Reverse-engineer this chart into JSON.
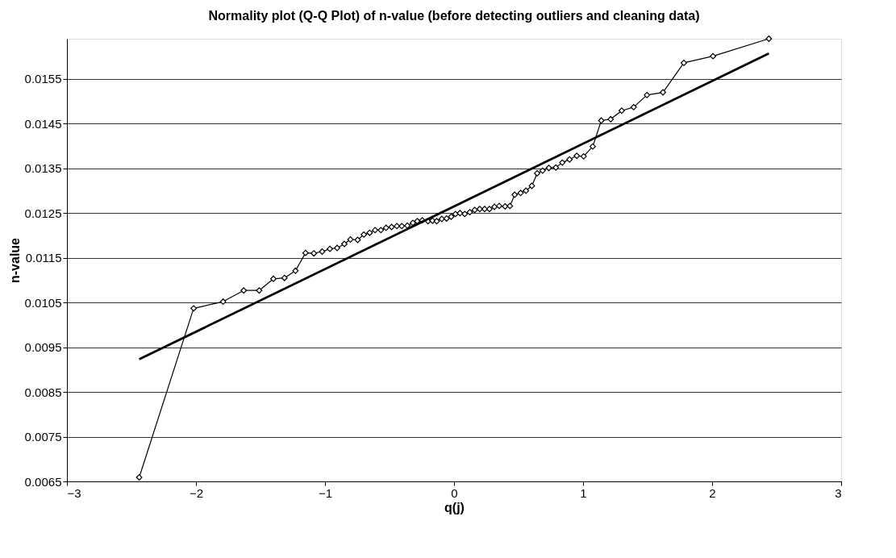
{
  "chart_data": {
    "type": "line",
    "title": "Normality plot (Q-Q Plot) of n-value (before detecting outliers and cleaning data)",
    "xlabel": "q(j)",
    "ylabel": "n-value",
    "xlim": [
      -3,
      3
    ],
    "xticks": [
      -3,
      -2,
      -1,
      0,
      1,
      2,
      3
    ],
    "ylim": [
      0.0065,
      0.0164
    ],
    "yticks": [
      0.0065,
      0.0075,
      0.0085,
      0.0095,
      0.0105,
      0.0115,
      0.0125,
      0.0135,
      0.0145,
      0.0155
    ],
    "grid": "y",
    "series": [
      {
        "color": "#000000",
        "marker": "diamond",
        "line_style": "solid",
        "x": [
          -2.44,
          -2.018,
          -1.79,
          -1.63,
          -1.51,
          -1.4,
          -1.314,
          -1.229,
          -1.151,
          -1.086,
          -1.022,
          -0.962,
          -0.906,
          -0.85,
          -0.803,
          -0.747,
          -0.699,
          -0.654,
          -0.612,
          -0.567,
          -0.527,
          -0.484,
          -0.443,
          -0.405,
          -0.362,
          -0.319,
          -0.285,
          -0.246,
          -0.202,
          -0.167,
          -0.134,
          -0.095,
          -0.058,
          -0.022,
          0.011,
          0.046,
          0.083,
          0.122,
          0.16,
          0.199,
          0.237,
          0.274,
          0.313,
          0.35,
          0.396,
          0.433,
          0.47,
          0.516,
          0.557,
          0.603,
          0.644,
          0.686,
          0.735,
          0.789,
          0.839,
          0.895,
          0.951,
          1.004,
          1.075,
          1.141,
          1.214,
          1.299,
          1.392,
          1.495,
          1.619,
          1.781,
          2.007,
          2.44
        ],
        "values": [
          0.00659,
          0.01037,
          0.01052,
          0.01077,
          0.01077,
          0.01103,
          0.01105,
          0.01121,
          0.01161,
          0.0116,
          0.01164,
          0.0117,
          0.01172,
          0.01181,
          0.01191,
          0.0119,
          0.01202,
          0.01206,
          0.01212,
          0.01212,
          0.01217,
          0.01219,
          0.01221,
          0.01221,
          0.01222,
          0.01228,
          0.01232,
          0.01234,
          0.01232,
          0.01233,
          0.01232,
          0.01237,
          0.01238,
          0.01242,
          0.01248,
          0.0125,
          0.01248,
          0.01252,
          0.01257,
          0.01259,
          0.01259,
          0.01259,
          0.01264,
          0.01266,
          0.01265,
          0.01266,
          0.01291,
          0.01295,
          0.013,
          0.01311,
          0.01339,
          0.01345,
          0.01351,
          0.01352,
          0.01363,
          0.0137,
          0.01378,
          0.01377,
          0.01399,
          0.01457,
          0.0146,
          0.01479,
          0.01487,
          0.01514,
          0.0152,
          0.01586,
          0.01601,
          0.0164
        ]
      },
      {
        "color": "#000000",
        "marker": "none",
        "line_style": "solid",
        "x": [
          -2.44,
          2.44
        ],
        "values": [
          0.00923,
          0.01607
        ]
      }
    ]
  }
}
